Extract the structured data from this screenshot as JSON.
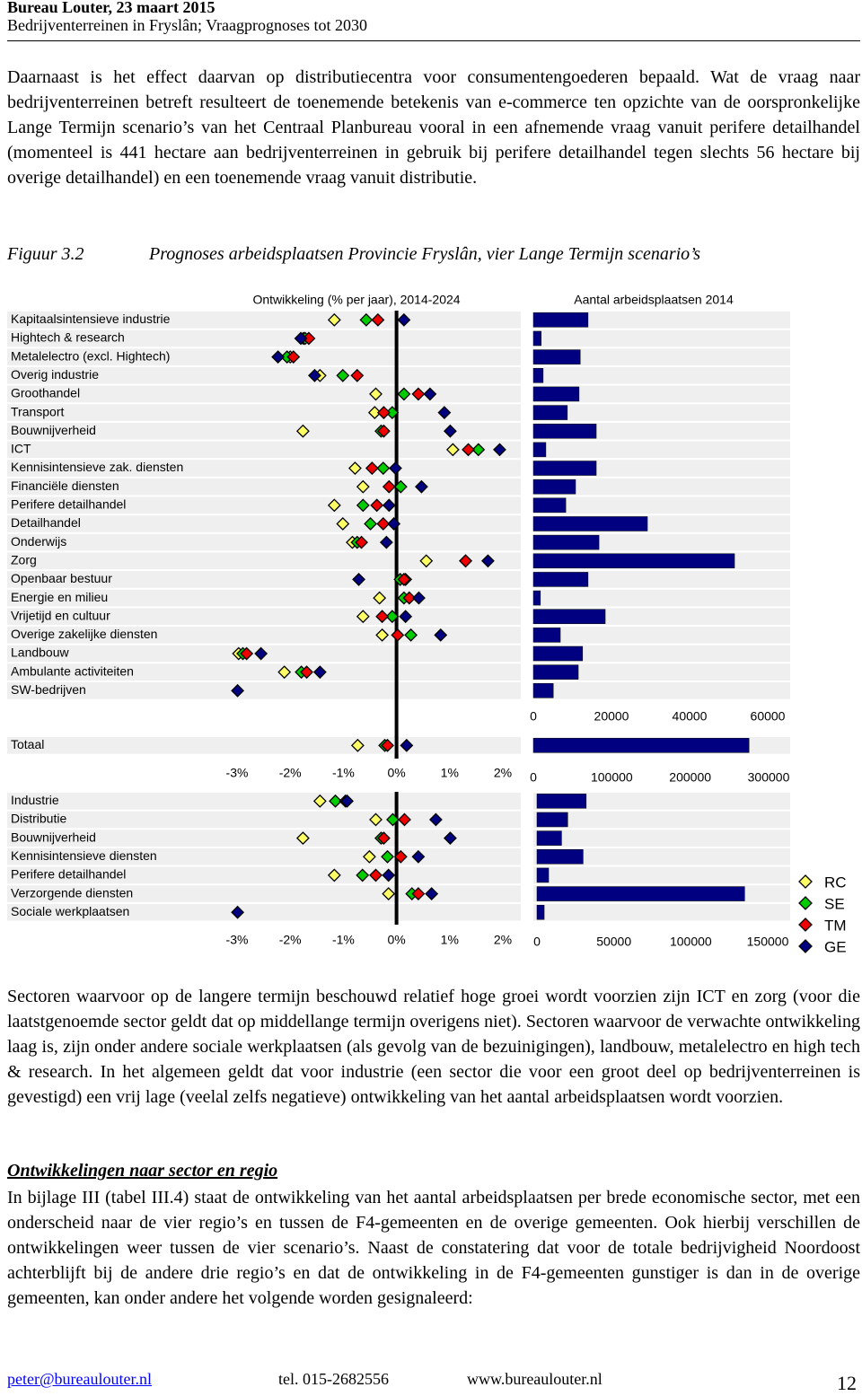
{
  "header": {
    "line1": "Bureau Louter, 23 maart 2015",
    "line2": "Bedrijventerreinen in Fryslân; Vraagprognoses tot 2030"
  },
  "paragraph1": "Daarnaast is het effect daarvan op distributiecentra voor consumentengoederen bepaald. Wat de vraag naar bedrijventerreinen betreft resulteert de toenemende betekenis van e-commerce ten opzichte van de oorspronkelijke Lange Termijn scenario’s van het Centraal Planbureau vooral in een afnemende vraag vanuit perifere detailhandel (momenteel is 441 hectare aan bedrijventerreinen in gebruik bij perifere detailhandel tegen slechts 56 hectare bij overige detailhandel) en een toenemende vraag vanuit distributie.",
  "figure": {
    "label": "Figuur 3.2",
    "caption": "Prognoses arbeidsplaatsen Provincie Fryslân, vier Lange Termijn scenario’s"
  },
  "chart_data": [
    {
      "type": "dot_bar",
      "title": "Ontwikkeling (% per jaar), 2014-2024",
      "bar_title": "Aantal arbeidsplaatsen 2014",
      "categories": [
        "Kapitaalsintensieve industrie",
        "Hightech & research",
        "Metalelectro (excl. Hightech)",
        "Overig industrie",
        "Groothandel",
        "Transport",
        "Bouwnijverheid",
        "ICT",
        "Kennisintensieve zak. diensten",
        "Financiële diensten",
        "Perifere detailhandel",
        "Detailhandel",
        "Onderwijs",
        "Zorg",
        "Openbaar bestuur",
        "Energie en milieu",
        "Vrijetijd en cultuur",
        "Overige zakelijke diensten",
        "Landbouw",
        "Ambulante activiteiten",
        "SW-bedrijven"
      ],
      "xlim": [
        -3,
        2
      ],
      "series": [
        {
          "color": "#ffff66",
          "values": [
            -1.17,
            -1.75,
            -2.0,
            -1.44,
            -0.39,
            -0.41,
            -1.76,
            1.06,
            -0.78,
            -0.63,
            -1.17,
            -1.01,
            -0.83,
            0.56,
            0.17,
            -0.32,
            -0.63,
            -0.27,
            -2.97,
            -2.11,
            null
          ]
        },
        {
          "color": "#00cc00",
          "values": [
            -0.57,
            -1.72,
            -2.06,
            -1.01,
            0.14,
            -0.08,
            -0.29,
            1.54,
            -0.25,
            0.08,
            -0.63,
            -0.49,
            -0.74,
            1.3,
            0.07,
            0.14,
            -0.08,
            0.27,
            -2.89,
            -1.79,
            null
          ]
        },
        {
          "color": "#ee0000",
          "values": [
            -0.35,
            -1.65,
            -1.94,
            -0.74,
            0.41,
            -0.24,
            -0.24,
            1.35,
            -0.46,
            -0.14,
            -0.37,
            -0.25,
            -0.66,
            1.3,
            0.14,
            0.24,
            -0.27,
            0.02,
            -2.82,
            -1.69,
            null
          ]
        },
        {
          "color": "#000080",
          "values": [
            0.14,
            -1.8,
            -2.23,
            -1.54,
            0.63,
            0.9,
            1.01,
            1.94,
            -0.02,
            0.47,
            -0.14,
            -0.05,
            -0.19,
            1.72,
            -0.71,
            0.42,
            0.17,
            0.83,
            -2.55,
            -1.44,
            -2.99
          ]
        }
      ],
      "bar_values": [
        14000,
        2000,
        12000,
        2500,
        11700,
        8700,
        16100,
        3200,
        16100,
        10800,
        8300,
        29200,
        16800,
        51500,
        14000,
        1800,
        18400,
        6900,
        12600,
        11500,
        5100
      ],
      "bar_color": "#000080",
      "bar_xlim": [
        0,
        60000
      ],
      "bar_xticks": [
        0,
        20000,
        40000,
        60000
      ]
    },
    {
      "type": "dot_bar",
      "categories": [
        "Totaal"
      ],
      "xlim": [
        -3,
        2
      ],
      "xticks": [
        {
          "value": -3,
          "label": "-3%"
        },
        {
          "value": -2,
          "label": "-2%"
        },
        {
          "value": -1,
          "label": "-1%"
        },
        {
          "value": 0,
          "label": "0%"
        },
        {
          "value": 1,
          "label": "1%"
        },
        {
          "value": 2,
          "label": "2%"
        }
      ],
      "series": [
        {
          "color": "#ffff66",
          "values": [
            -0.73
          ]
        },
        {
          "color": "#00cc00",
          "values": [
            -0.22
          ]
        },
        {
          "color": "#ee0000",
          "values": [
            -0.17
          ]
        },
        {
          "color": "#000080",
          "values": [
            0.19
          ]
        }
      ],
      "bar_values": [
        275000
      ],
      "bar_color": "#000080",
      "bar_xlim": [
        0,
        300000
      ],
      "bar_xticks": [
        0,
        100000,
        200000,
        300000
      ]
    },
    {
      "type": "dot_bar",
      "categories": [
        "Industrie",
        "Distributie",
        "Bouwnijverheid",
        "Kennisintensieve diensten",
        "Perifere detailhandel",
        "Verzorgende diensten",
        "Sociale werkplaatsen"
      ],
      "xlim": [
        -3,
        2
      ],
      "xticks": [
        {
          "value": -3,
          "label": "-3%"
        },
        {
          "value": -2,
          "label": "-2%"
        },
        {
          "value": -1,
          "label": "-1%"
        },
        {
          "value": 0,
          "label": "0%"
        },
        {
          "value": 1,
          "label": "1%"
        },
        {
          "value": 2,
          "label": "2%"
        }
      ],
      "series": [
        {
          "name": "RC",
          "color": "#ffff66",
          "values": [
            -1.44,
            -0.39,
            -1.76,
            -0.51,
            -1.17,
            -0.15,
            null
          ]
        },
        {
          "name": "SE",
          "color": "#00cc00",
          "values": [
            -1.15,
            -0.07,
            -0.29,
            -0.17,
            -0.64,
            0.29,
            null
          ]
        },
        {
          "name": "TM",
          "color": "#ee0000",
          "values": [
            -0.96,
            0.15,
            -0.24,
            0.08,
            -0.39,
            0.41,
            null
          ]
        },
        {
          "name": "GE",
          "color": "#000080",
          "values": [
            -0.93,
            0.74,
            1.01,
            0.41,
            -0.15,
            0.66,
            -2.99
          ]
        }
      ],
      "bar_values": [
        32000,
        20000,
        16000,
        30000,
        7600,
        135000,
        4700
      ],
      "bar_color": "#000080",
      "bar_xlim": [
        0,
        150000
      ],
      "bar_xticks": [
        0,
        50000,
        100000,
        150000
      ],
      "legend": "right"
    }
  ],
  "paragraph2": "Sectoren waarvoor op de langere termijn beschouwd relatief hoge groei wordt voorzien zijn ICT en zorg (voor die laatstgenoemde sector geldt dat op middellange termijn overigens niet). Sectoren waarvoor de verwachte ontwikkeling laag is, zijn onder andere sociale werkplaatsen (als gevolg van de bezuinigingen), landbouw, metalelectro en high tech & research. In het algemeen geldt dat voor industrie (een sector die voor een groot deel op bedrijventerreinen is gevestigd) een vrij lage (veelal zelfs negatieve) ontwikkeling van het aantal arbeidsplaatsen wordt voorzien.",
  "heading": "Ontwikkelingen naar sector en regio",
  "paragraph3": "In bijlage III (tabel III.4) staat de ontwikkeling van het aantal arbeidsplaatsen per brede economische sector, met een onderscheid naar de vier regio’s en tussen de F4-gemeenten en de overige gemeenten. Ook hierbij verschillen de ontwikkelingen weer tussen de vier scenario’s. Naast de constatering dat voor de totale bedrijvigheid Noordoost achterblijft bij de andere drie regio’s en dat de ontwikkeling in de F4-gemeenten gunstiger is dan in de overige gemeenten, kan onder andere het volgende worden gesignaleerd:",
  "footer": {
    "email": "peter@bureaulouter.nl",
    "tel": "tel. 015-2682556",
    "web": "www.bureaulouter.nl",
    "page": "12"
  }
}
